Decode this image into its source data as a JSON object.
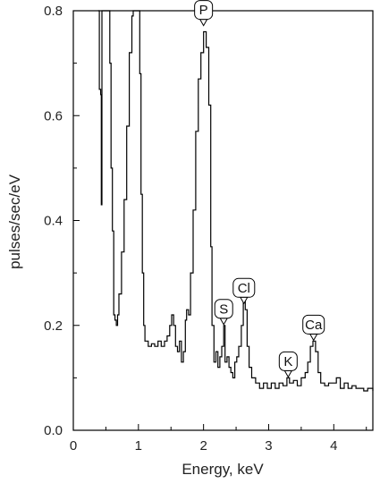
{
  "chart_data": {
    "type": "line",
    "xlabel": "Energy, keV",
    "ylabel": "pulses/sec/eV",
    "xlim": [
      0,
      4.6
    ],
    "ylim": [
      0,
      0.8
    ],
    "grid": false,
    "legend": "none",
    "x_ticks": [
      0,
      1,
      2,
      3,
      4
    ],
    "y_ticks": [
      0.0,
      0.2,
      0.4,
      0.6,
      0.8
    ],
    "x_tick_labels": [
      "0",
      "1",
      "2",
      "3",
      "4"
    ],
    "y_tick_labels": [
      "0.0",
      "0.2",
      "0.4",
      "0.6",
      "0.8"
    ],
    "line_color": "#000000",
    "series": [
      {
        "values": [
          [
            0.38,
            0.8
          ],
          [
            0.4,
            0.65
          ],
          [
            0.42,
            0.64
          ],
          [
            0.43,
            0.43
          ],
          [
            0.44,
            0.8
          ],
          [
            0.55,
            0.8
          ],
          [
            0.56,
            0.7
          ],
          [
            0.58,
            0.5
          ],
          [
            0.6,
            0.38
          ],
          [
            0.62,
            0.22
          ],
          [
            0.64,
            0.21
          ],
          [
            0.66,
            0.2
          ],
          [
            0.68,
            0.22
          ],
          [
            0.7,
            0.26
          ],
          [
            0.74,
            0.34
          ],
          [
            0.78,
            0.44
          ],
          [
            0.82,
            0.58
          ],
          [
            0.86,
            0.72
          ],
          [
            0.9,
            0.79
          ],
          [
            0.92,
            0.8
          ],
          [
            1.0,
            0.8
          ],
          [
            1.02,
            0.68
          ],
          [
            1.04,
            0.45
          ],
          [
            1.06,
            0.3
          ],
          [
            1.08,
            0.2
          ],
          [
            1.1,
            0.17
          ],
          [
            1.15,
            0.16
          ],
          [
            1.2,
            0.165
          ],
          [
            1.25,
            0.16
          ],
          [
            1.3,
            0.17
          ],
          [
            1.35,
            0.16
          ],
          [
            1.4,
            0.17
          ],
          [
            1.44,
            0.18
          ],
          [
            1.48,
            0.2
          ],
          [
            1.51,
            0.22
          ],
          [
            1.54,
            0.2
          ],
          [
            1.57,
            0.16
          ],
          [
            1.6,
            0.15
          ],
          [
            1.63,
            0.17
          ],
          [
            1.66,
            0.13
          ],
          [
            1.69,
            0.15
          ],
          [
            1.72,
            0.21
          ],
          [
            1.74,
            0.23
          ],
          [
            1.77,
            0.22
          ],
          [
            1.8,
            0.3
          ],
          [
            1.84,
            0.42
          ],
          [
            1.88,
            0.57
          ],
          [
            1.92,
            0.67
          ],
          [
            1.96,
            0.72
          ],
          [
            2.0,
            0.76
          ],
          [
            2.04,
            0.73
          ],
          [
            2.08,
            0.62
          ],
          [
            2.11,
            0.35
          ],
          [
            2.13,
            0.2
          ],
          [
            2.16,
            0.13
          ],
          [
            2.19,
            0.15
          ],
          [
            2.22,
            0.12
          ],
          [
            2.25,
            0.14
          ],
          [
            2.28,
            0.16
          ],
          [
            2.31,
            0.2
          ],
          [
            2.33,
            0.13
          ],
          [
            2.36,
            0.14
          ],
          [
            2.39,
            0.12
          ],
          [
            2.42,
            0.11
          ],
          [
            2.45,
            0.1
          ],
          [
            2.48,
            0.13
          ],
          [
            2.51,
            0.14
          ],
          [
            2.54,
            0.16
          ],
          [
            2.58,
            0.2
          ],
          [
            2.61,
            0.25
          ],
          [
            2.64,
            0.23
          ],
          [
            2.67,
            0.16
          ],
          [
            2.7,
            0.12
          ],
          [
            2.74,
            0.1
          ],
          [
            2.8,
            0.09
          ],
          [
            2.86,
            0.08
          ],
          [
            2.92,
            0.09
          ],
          [
            2.98,
            0.08
          ],
          [
            3.04,
            0.09
          ],
          [
            3.1,
            0.08
          ],
          [
            3.16,
            0.09
          ],
          [
            3.22,
            0.085
          ],
          [
            3.28,
            0.1
          ],
          [
            3.32,
            0.09
          ],
          [
            3.38,
            0.095
          ],
          [
            3.44,
            0.085
          ],
          [
            3.5,
            0.1
          ],
          [
            3.56,
            0.11
          ],
          [
            3.6,
            0.13
          ],
          [
            3.64,
            0.16
          ],
          [
            3.68,
            0.17
          ],
          [
            3.72,
            0.15
          ],
          [
            3.76,
            0.11
          ],
          [
            3.8,
            0.09
          ],
          [
            3.86,
            0.085
          ],
          [
            3.92,
            0.09
          ],
          [
            3.98,
            0.09
          ],
          [
            4.04,
            0.1
          ],
          [
            4.1,
            0.08
          ],
          [
            4.16,
            0.09
          ],
          [
            4.22,
            0.08
          ],
          [
            4.28,
            0.085
          ],
          [
            4.34,
            0.08
          ],
          [
            4.4,
            0.08
          ],
          [
            4.46,
            0.075
          ],
          [
            4.52,
            0.08
          ],
          [
            4.6,
            0.075
          ]
        ]
      }
    ],
    "annotations": [
      {
        "label": "P",
        "x": 2.0,
        "y": 0.77
      },
      {
        "label": "S",
        "x": 2.31,
        "y": 0.2
      },
      {
        "label": "Cl",
        "x": 2.62,
        "y": 0.24
      },
      {
        "label": "K",
        "x": 3.3,
        "y": 0.1
      },
      {
        "label": "Ca",
        "x": 3.69,
        "y": 0.17
      }
    ]
  }
}
